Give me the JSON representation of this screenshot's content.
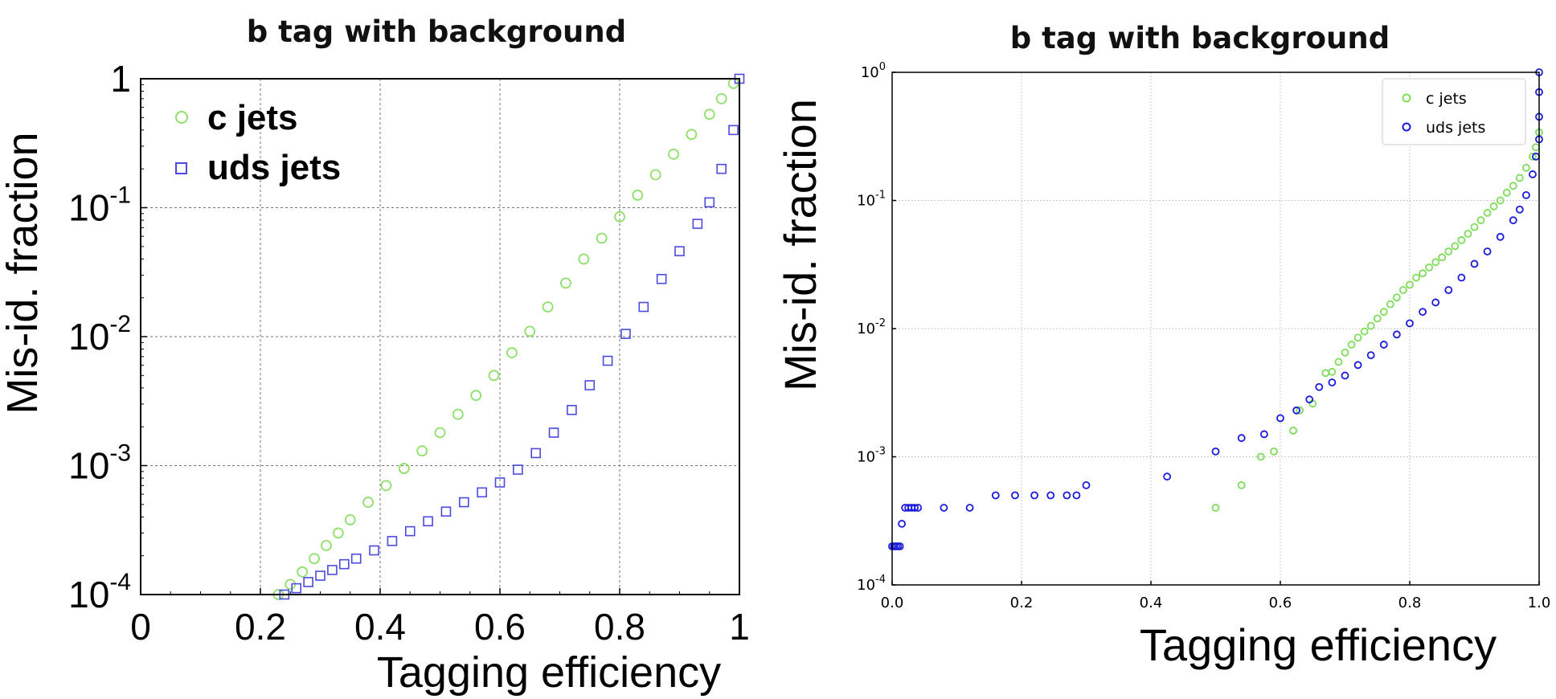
{
  "chart_data": [
    {
      "type": "scatter",
      "title": "b tag with background",
      "xlabel": "Tagging efficiency",
      "ylabel": "Mis-id. fraction",
      "xlim": [
        0,
        1
      ],
      "ylim": [
        0.0001,
        1
      ],
      "yscale": "log",
      "grid": true,
      "legend_position": "top-left",
      "x_ticks": [
        "0",
        "0.2",
        "0.4",
        "0.6",
        "0.8",
        "1"
      ],
      "y_ticks": [
        {
          "base": "10",
          "exp": "-4"
        },
        {
          "base": "10",
          "exp": "-3"
        },
        {
          "base": "10",
          "exp": "-2"
        },
        {
          "base": "10",
          "exp": "-1"
        },
        {
          "base": "1",
          "exp": ""
        }
      ],
      "series": [
        {
          "name": "c jets",
          "marker": "circle",
          "color": "#8fe06a",
          "x": [
            0.23,
            0.25,
            0.27,
            0.29,
            0.31,
            0.33,
            0.35,
            0.38,
            0.41,
            0.44,
            0.47,
            0.5,
            0.53,
            0.56,
            0.59,
            0.62,
            0.65,
            0.68,
            0.71,
            0.74,
            0.77,
            0.8,
            0.83,
            0.86,
            0.89,
            0.92,
            0.95,
            0.97,
            0.99
          ],
          "y": [
            0.0001,
            0.00012,
            0.00015,
            0.00019,
            0.00024,
            0.0003,
            0.00038,
            0.00052,
            0.0007,
            0.00095,
            0.0013,
            0.0018,
            0.0025,
            0.0035,
            0.005,
            0.0075,
            0.011,
            0.017,
            0.026,
            0.04,
            0.058,
            0.085,
            0.125,
            0.18,
            0.26,
            0.37,
            0.53,
            0.7,
            0.92
          ]
        },
        {
          "name": "uds jets",
          "marker": "square",
          "color": "#4a4ae0",
          "x": [
            0.24,
            0.26,
            0.28,
            0.3,
            0.32,
            0.34,
            0.36,
            0.39,
            0.42,
            0.45,
            0.48,
            0.51,
            0.54,
            0.57,
            0.6,
            0.63,
            0.66,
            0.69,
            0.72,
            0.75,
            0.78,
            0.81,
            0.84,
            0.87,
            0.9,
            0.93,
            0.95,
            0.97,
            0.99,
            1.0
          ],
          "y": [
            0.0001,
            0.000112,
            0.000125,
            0.00014,
            0.000155,
            0.000172,
            0.00019,
            0.00022,
            0.00026,
            0.00031,
            0.00037,
            0.00044,
            0.00052,
            0.00062,
            0.00074,
            0.00093,
            0.00125,
            0.0018,
            0.0027,
            0.0042,
            0.0065,
            0.0105,
            0.017,
            0.028,
            0.046,
            0.075,
            0.11,
            0.2,
            0.4,
            1.0
          ]
        }
      ]
    },
    {
      "type": "scatter",
      "title": "b tag with background",
      "xlabel": "Tagging efficiency",
      "ylabel": "Mis-id. fraction",
      "xlim": [
        0,
        1
      ],
      "ylim": [
        0.0001,
        1
      ],
      "yscale": "log",
      "grid": true,
      "legend_position": "top-right",
      "x_ticks": [
        "0.0",
        "0.2",
        "0.4",
        "0.6",
        "0.8",
        "1.0"
      ],
      "y_ticks": [
        {
          "base": "10",
          "exp": "-4"
        },
        {
          "base": "10",
          "exp": "-3"
        },
        {
          "base": "10",
          "exp": "-2"
        },
        {
          "base": "10",
          "exp": "-1"
        },
        {
          "base": "10",
          "exp": "0"
        }
      ],
      "series": [
        {
          "name": "c jets",
          "marker": "circle",
          "color": "#7ddc5a",
          "x": [
            0.5,
            0.54,
            0.57,
            0.59,
            0.62,
            0.63,
            0.65,
            0.67,
            0.68,
            0.69,
            0.7,
            0.71,
            0.72,
            0.73,
            0.74,
            0.75,
            0.76,
            0.77,
            0.78,
            0.79,
            0.8,
            0.81,
            0.82,
            0.83,
            0.84,
            0.85,
            0.86,
            0.87,
            0.88,
            0.89,
            0.9,
            0.91,
            0.92,
            0.93,
            0.94,
            0.95,
            0.96,
            0.97,
            0.98,
            0.99,
            0.995,
            1.0
          ],
          "y": [
            0.0004,
            0.0006,
            0.001,
            0.0011,
            0.0016,
            0.0023,
            0.0026,
            0.0045,
            0.0046,
            0.0055,
            0.0065,
            0.0075,
            0.0085,
            0.0095,
            0.0105,
            0.012,
            0.0135,
            0.0155,
            0.0175,
            0.02,
            0.022,
            0.025,
            0.027,
            0.03,
            0.033,
            0.036,
            0.04,
            0.044,
            0.049,
            0.055,
            0.062,
            0.07,
            0.08,
            0.09,
            0.1,
            0.115,
            0.13,
            0.15,
            0.18,
            0.22,
            0.26,
            0.34
          ]
        },
        {
          "name": "uds jets",
          "marker": "circle",
          "color": "#1a1add",
          "x": [
            0.0,
            0.003,
            0.006,
            0.009,
            0.012,
            0.015,
            0.02,
            0.025,
            0.03,
            0.035,
            0.04,
            0.08,
            0.12,
            0.16,
            0.19,
            0.22,
            0.245,
            0.27,
            0.285,
            0.3,
            0.425,
            0.5,
            0.54,
            0.575,
            0.6,
            0.625,
            0.645,
            0.66,
            0.68,
            0.7,
            0.72,
            0.74,
            0.76,
            0.78,
            0.8,
            0.82,
            0.84,
            0.86,
            0.88,
            0.9,
            0.92,
            0.94,
            0.96,
            0.97,
            0.98,
            0.99,
            0.995,
            1.0,
            1.0,
            1.0,
            1.0
          ],
          "y": [
            0.0002,
            0.0002,
            0.0002,
            0.0002,
            0.0002,
            0.0003,
            0.0004,
            0.0004,
            0.0004,
            0.0004,
            0.0004,
            0.0004,
            0.0004,
            0.0005,
            0.0005,
            0.0005,
            0.0005,
            0.0005,
            0.0005,
            0.0006,
            0.0007,
            0.0011,
            0.0014,
            0.0015,
            0.002,
            0.0023,
            0.0028,
            0.0035,
            0.0038,
            0.0043,
            0.0052,
            0.0062,
            0.0075,
            0.009,
            0.011,
            0.0135,
            0.016,
            0.02,
            0.025,
            0.032,
            0.04,
            0.052,
            0.07,
            0.085,
            0.11,
            0.16,
            0.22,
            0.3,
            0.45,
            0.7,
            1.0
          ]
        }
      ]
    }
  ]
}
